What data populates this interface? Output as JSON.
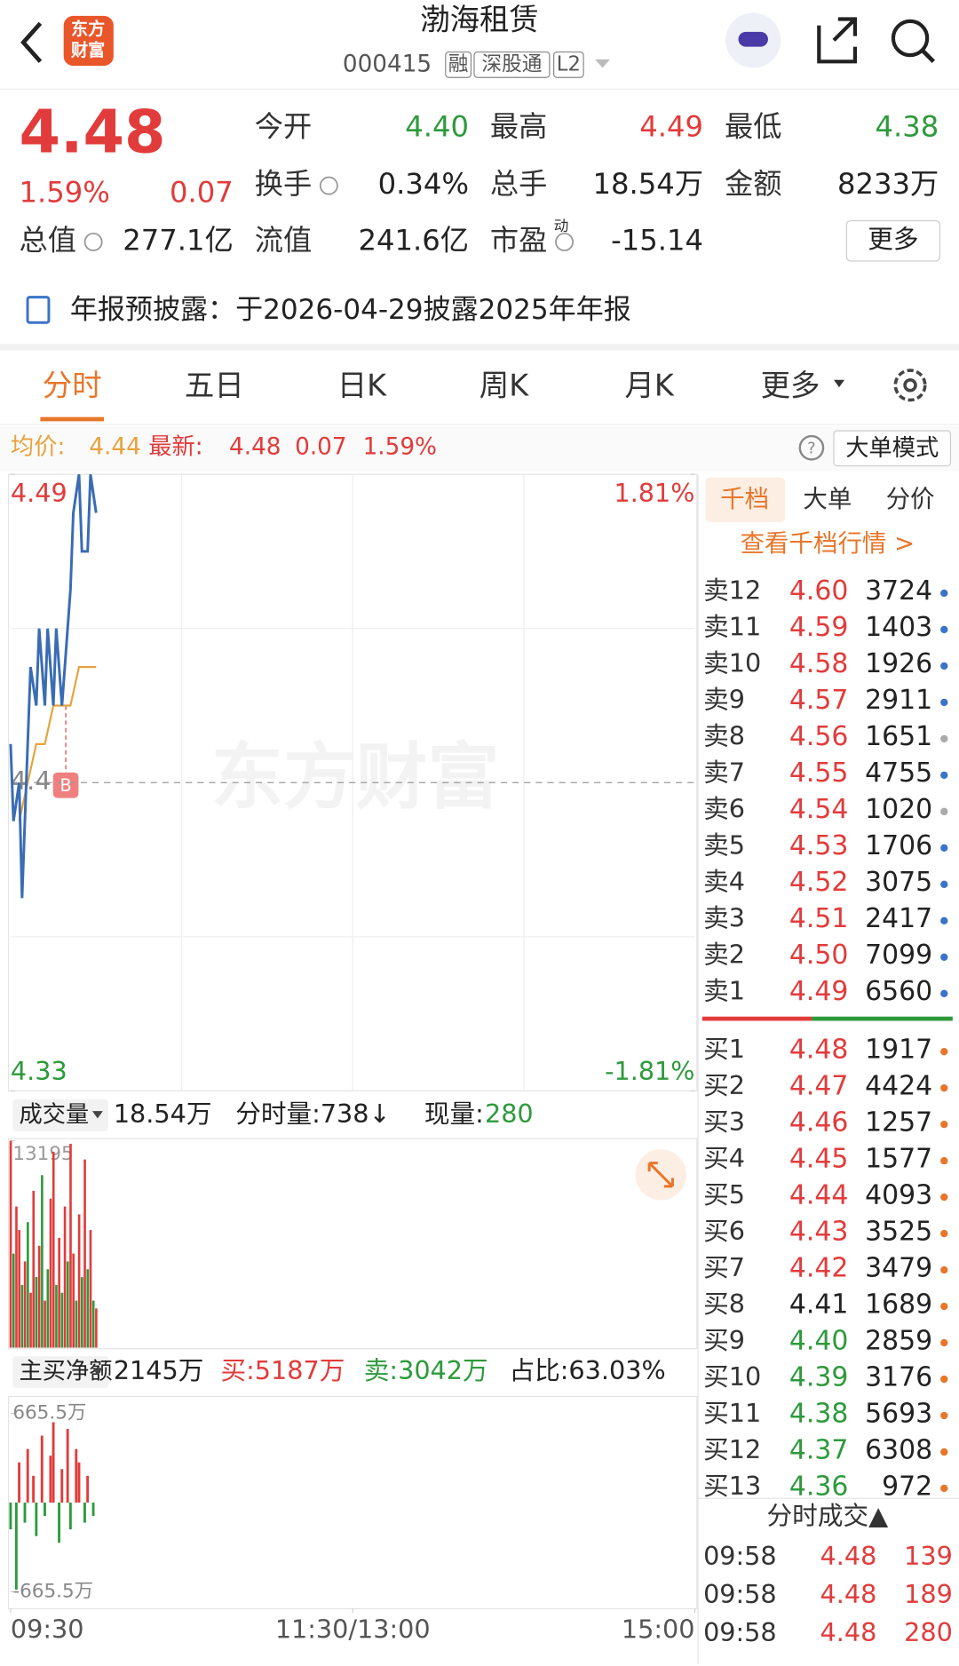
{
  "header": {
    "title": "渤海租赁",
    "code": "000415",
    "tags": [
      "融",
      "深股通",
      "L2"
    ],
    "logo": [
      "东方",
      "财富"
    ]
  },
  "quote": {
    "price": "4.48",
    "change_pct": "1.59%",
    "change": "0.07",
    "more": "更多",
    "stats": [
      {
        "label": "今开",
        "value": "4.40",
        "color": "#2e9a3c"
      },
      {
        "label": "最高",
        "value": "4.49",
        "color": "#e23b3b"
      },
      {
        "label": "最低",
        "value": "4.38",
        "color": "#2e9a3c"
      },
      {
        "label": "换手",
        "value": "0.34%"
      },
      {
        "label": "总手",
        "value": "18.54万"
      },
      {
        "label": "金额",
        "value": "8233万"
      },
      {
        "label": "总值",
        "value": "277.1亿"
      },
      {
        "label": "流值",
        "value": "241.6亿"
      },
      {
        "label": "市盈",
        "sup": "动",
        "value": "-15.14"
      }
    ]
  },
  "notice": "年报预披露：于2026-04-29披露2025年年报",
  "tabs": [
    "分时",
    "五日",
    "日K",
    "周K",
    "月K",
    "更多"
  ],
  "active_tab": 0,
  "info": {
    "avg_label": "均价:",
    "avg": "4.44",
    "last_label": "最新:",
    "last": "4.48",
    "change": "0.07",
    "change_pct": "1.59%",
    "mode": "大单模式"
  },
  "price_chart": {
    "type": "line",
    "watermark": "东方财富",
    "xlim": [
      0,
      240
    ],
    "ylim": [
      4.33,
      4.49
    ],
    "yticks": [
      4.49,
      {
        "value": 4.41,
        "label": "4.4"
      },
      4.33
    ],
    "y2lim": [
      -1.81,
      1.81
    ],
    "y2ticks": [
      {
        "value": 1.81,
        "label": "1.81%"
      },
      {
        "value": -1.81,
        "label": "-1.81%"
      }
    ],
    "series": [
      {
        "color": "#3a6cb5",
        "x": [
          0,
          1,
          3,
          4,
          6,
          7,
          9,
          10,
          12,
          13,
          15,
          16,
          18,
          19,
          21,
          22,
          24,
          25,
          27,
          28,
          30
        ],
        "values": [
          4.42,
          4.4,
          4.41,
          4.38,
          4.42,
          4.44,
          4.43,
          4.45,
          4.43,
          4.45,
          4.43,
          4.45,
          4.43,
          4.44,
          4.46,
          4.48,
          4.49,
          4.47,
          4.47,
          4.49,
          4.48
        ]
      },
      {
        "color": "#e8a23c",
        "x": [
          3,
          6,
          9,
          12,
          15,
          18,
          21,
          24,
          27,
          30
        ],
        "values": [
          4.4,
          4.41,
          4.42,
          4.42,
          4.43,
          4.43,
          4.43,
          4.44,
          4.44,
          4.44
        ]
      }
    ]
  },
  "volume_chart": {
    "type": "bar",
    "label": "成交量",
    "total": "18.54万",
    "minute": "分时量:738↓",
    "current_label": "现量:",
    "current": "280",
    "xlim": [
      0,
      240
    ],
    "ylim": [
      0,
      13195
    ],
    "yticks": [
      13195
    ],
    "x": [
      0,
      1,
      2,
      3,
      4,
      5,
      6,
      7,
      8,
      9,
      10,
      11,
      12,
      13,
      14,
      15,
      16,
      17,
      18,
      19,
      20,
      21,
      22,
      23,
      24,
      25,
      26,
      27,
      28,
      29,
      30
    ],
    "values": [
      13195,
      6000,
      9000,
      7500,
      4000,
      5500,
      8000,
      3500,
      10000,
      4500,
      6500,
      11000,
      3000,
      5000,
      9500,
      12500,
      4000,
      7000,
      3500,
      9000,
      5500,
      13000,
      6000,
      3000,
      8500,
      4500,
      12000,
      5000,
      7500,
      3000,
      2500
    ],
    "colors": [
      "#e23b3b",
      "#2e9a3c",
      "#e23b3b",
      "#e23b3b",
      "#2e9a3c",
      "#e23b3b",
      "#2e9a3c",
      "#e23b3b",
      "#e23b3b",
      "#2e9a3c",
      "#e23b3b",
      "#2e9a3c",
      "#e23b3b",
      "#2e9a3c",
      "#e23b3b",
      "#e23b3b",
      "#2e9a3c",
      "#e23b3b",
      "#2e9a3c",
      "#e23b3b",
      "#2e9a3c",
      "#e23b3b",
      "#e23b3b",
      "#2e9a3c",
      "#e23b3b",
      "#2e9a3c",
      "#e23b3b",
      "#2e9a3c",
      "#e23b3b",
      "#2e9a3c",
      "#e23b3b"
    ]
  },
  "flow_chart": {
    "type": "bar",
    "label": "主买净额",
    "net": "2145万",
    "buy": "买:5187万",
    "sell": "卖:3042万",
    "ratio": "占比:63.03%",
    "xlim": [
      0,
      240
    ],
    "ylim": [
      -665.5,
      665.5
    ],
    "yticks": [
      {
        "value": 665.5,
        "label": "665.5万"
      },
      {
        "value": -665.5,
        "label": "-665.5万"
      }
    ],
    "xticks": [
      {
        "value": 0,
        "label": "09:30"
      },
      {
        "value": 120,
        "label": "11:30/13:00"
      },
      {
        "value": 240,
        "label": "15:00"
      }
    ],
    "x": [
      0,
      2,
      3,
      5,
      6,
      8,
      9,
      11,
      12,
      14,
      15,
      17,
      18,
      20,
      21,
      23,
      24,
      26,
      27,
      29
    ],
    "values": [
      -200,
      -650,
      300,
      -150,
      400,
      200,
      -250,
      500,
      -100,
      350,
      600,
      -300,
      250,
      550,
      -200,
      400,
      300,
      -150,
      200,
      -100
    ]
  },
  "book": {
    "tabs": [
      "千档",
      "大单",
      "分价"
    ],
    "link": "查看千档行情 >",
    "sells": [
      {
        "label": "卖12",
        "price": "4.60",
        "volume": "3724",
        "color": "#e23b3b",
        "dot": "#3b73c9"
      },
      {
        "label": "卖11",
        "price": "4.59",
        "volume": "1403",
        "color": "#e23b3b",
        "dot": "#3b73c9"
      },
      {
        "label": "卖10",
        "price": "4.58",
        "volume": "1926",
        "color": "#e23b3b",
        "dot": "#3b73c9"
      },
      {
        "label": "卖9",
        "price": "4.57",
        "volume": "2911",
        "color": "#e23b3b",
        "dot": "#3b73c9"
      },
      {
        "label": "卖8",
        "price": "4.56",
        "volume": "1651",
        "color": "#e23b3b",
        "dot": "#aaaaaa"
      },
      {
        "label": "卖7",
        "price": "4.55",
        "volume": "4755",
        "color": "#e23b3b",
        "dot": "#3b73c9"
      },
      {
        "label": "卖6",
        "price": "4.54",
        "volume": "1020",
        "color": "#e23b3b",
        "dot": "#aaaaaa"
      },
      {
        "label": "卖5",
        "price": "4.53",
        "volume": "1706",
        "color": "#e23b3b",
        "dot": "#3b73c9"
      },
      {
        "label": "卖4",
        "price": "4.52",
        "volume": "3075",
        "color": "#e23b3b",
        "dot": "#3b73c9"
      },
      {
        "label": "卖3",
        "price": "4.51",
        "volume": "2417",
        "color": "#e23b3b",
        "dot": "#3b73c9"
      },
      {
        "label": "卖2",
        "price": "4.50",
        "volume": "7099",
        "color": "#e23b3b",
        "dot": "#3b73c9"
      },
      {
        "label": "卖1",
        "price": "4.49",
        "volume": "6560",
        "color": "#e23b3b",
        "dot": "#3b73c9"
      }
    ],
    "buys": [
      {
        "label": "买1",
        "price": "4.48",
        "volume": "1917",
        "color": "#e23b3b",
        "dot": "#e8762a"
      },
      {
        "label": "买2",
        "price": "4.47",
        "volume": "4424",
        "color": "#e23b3b",
        "dot": "#e8762a"
      },
      {
        "label": "买3",
        "price": "4.46",
        "volume": "1257",
        "color": "#e23b3b",
        "dot": "#e8762a"
      },
      {
        "label": "买4",
        "price": "4.45",
        "volume": "1577",
        "color": "#e23b3b",
        "dot": "#e8762a"
      },
      {
        "label": "买5",
        "price": "4.44",
        "volume": "4093",
        "color": "#e23b3b",
        "dot": "#e8762a"
      },
      {
        "label": "买6",
        "price": "4.43",
        "volume": "3525",
        "color": "#e23b3b",
        "dot": "#e8762a"
      },
      {
        "label": "买7",
        "price": "4.42",
        "volume": "3479",
        "color": "#e23b3b",
        "dot": "#e8762a"
      },
      {
        "label": "买8",
        "price": "4.41",
        "volume": "1689",
        "color": "#222222",
        "dot": "#e8762a"
      },
      {
        "label": "买9",
        "price": "4.40",
        "volume": "2859",
        "color": "#2e9a3c",
        "dot": "#e8762a"
      },
      {
        "label": "买10",
        "price": "4.39",
        "volume": "3176",
        "color": "#2e9a3c",
        "dot": "#e8762a"
      },
      {
        "label": "买11",
        "price": "4.38",
        "volume": "5693",
        "color": "#2e9a3c",
        "dot": "#e8762a"
      },
      {
        "label": "买12",
        "price": "4.37",
        "volume": "6308",
        "color": "#2e9a3c",
        "dot": "#e8762a"
      },
      {
        "label": "买13",
        "price": "4.36",
        "volume": "972",
        "color": "#2e9a3c",
        "dot": "#e8762a"
      }
    ]
  },
  "trades": {
    "title": "分时成交▲",
    "rows": [
      {
        "time": "09:58",
        "price": "4.48",
        "volume": "139"
      },
      {
        "time": "09:58",
        "price": "4.48",
        "volume": "189"
      },
      {
        "time": "09:58",
        "price": "4.48",
        "volume": "280"
      }
    ]
  }
}
